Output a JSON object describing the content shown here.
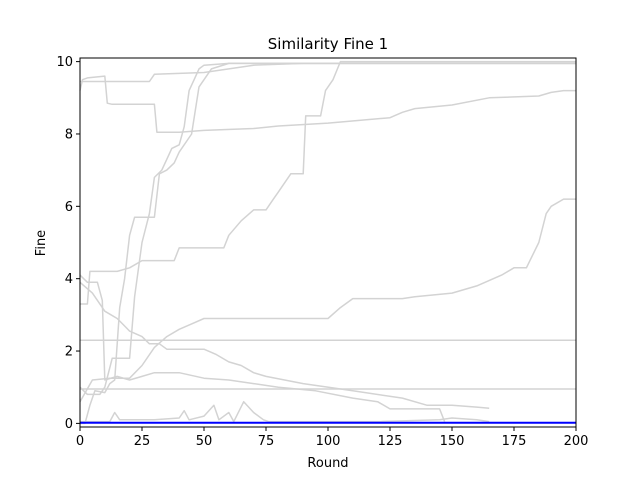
{
  "chart_data": {
    "type": "line",
    "title": "Similarity Fine 1",
    "xlabel": "Round",
    "ylabel": "Fine",
    "xlim": [
      0,
      200
    ],
    "ylim": [
      -0.1,
      10.1
    ],
    "x_ticks": [
      0,
      25,
      50,
      75,
      100,
      125,
      150,
      175,
      200
    ],
    "y_ticks": [
      0,
      2,
      4,
      6,
      8,
      10
    ],
    "grid": false,
    "legend": "none",
    "colors": {
      "background_series": "#d3d3d3",
      "highlight_series": "#0000ff"
    },
    "series": [
      {
        "color": "#d3d3d3",
        "points": [
          [
            0,
            9.2
          ],
          [
            1,
            9.5
          ],
          [
            3,
            9.55
          ],
          [
            10,
            9.6
          ],
          [
            11,
            8.85
          ],
          [
            13,
            8.82
          ],
          [
            30,
            8.82
          ],
          [
            31,
            8.05
          ],
          [
            40,
            8.05
          ],
          [
            50,
            8.1
          ],
          [
            70,
            8.15
          ],
          [
            80,
            8.22
          ],
          [
            100,
            8.3
          ],
          [
            125,
            8.45
          ],
          [
            130,
            8.6
          ],
          [
            135,
            8.7
          ],
          [
            150,
            8.8
          ],
          [
            165,
            9.0
          ],
          [
            185,
            9.05
          ],
          [
            190,
            9.15
          ],
          [
            195,
            9.2
          ],
          [
            200,
            9.2
          ]
        ]
      },
      {
        "color": "#d3d3d3",
        "points": [
          [
            0,
            9.45
          ],
          [
            28,
            9.45
          ],
          [
            30,
            9.65
          ],
          [
            50,
            9.7
          ],
          [
            60,
            9.8
          ],
          [
            70,
            9.9
          ],
          [
            90,
            9.95
          ],
          [
            200,
            9.95
          ]
        ]
      },
      {
        "color": "#d3d3d3",
        "points": [
          [
            0,
            3.3
          ],
          [
            3,
            3.3
          ],
          [
            4,
            4.2
          ],
          [
            15,
            4.2
          ],
          [
            20,
            4.3
          ],
          [
            25,
            4.5
          ],
          [
            38,
            4.5
          ],
          [
            40,
            4.85
          ],
          [
            58,
            4.85
          ],
          [
            60,
            5.2
          ],
          [
            65,
            5.6
          ],
          [
            70,
            5.9
          ],
          [
            75,
            5.9
          ],
          [
            78,
            6.2
          ],
          [
            80,
            6.4
          ],
          [
            85,
            6.9
          ],
          [
            90,
            6.9
          ],
          [
            91,
            8.5
          ],
          [
            97,
            8.5
          ],
          [
            99,
            9.2
          ],
          [
            102,
            9.5
          ],
          [
            105,
            10.0
          ],
          [
            200,
            10.0
          ]
        ]
      },
      {
        "color": "#d3d3d3",
        "points": [
          [
            0,
            0.6
          ],
          [
            5,
            1.2
          ],
          [
            12,
            1.25
          ],
          [
            20,
            1.25
          ],
          [
            25,
            1.6
          ],
          [
            30,
            2.1
          ],
          [
            35,
            2.4
          ],
          [
            40,
            2.6
          ],
          [
            45,
            2.75
          ],
          [
            50,
            2.9
          ],
          [
            75,
            2.9
          ],
          [
            100,
            2.9
          ],
          [
            105,
            3.2
          ],
          [
            110,
            3.45
          ],
          [
            130,
            3.45
          ],
          [
            135,
            3.5
          ],
          [
            150,
            3.6
          ],
          [
            160,
            3.8
          ],
          [
            170,
            4.1
          ],
          [
            175,
            4.3
          ],
          [
            180,
            4.3
          ],
          [
            185,
            5.0
          ],
          [
            188,
            5.8
          ],
          [
            190,
            6.0
          ],
          [
            195,
            6.2
          ],
          [
            200,
            6.2
          ]
        ]
      },
      {
        "color": "#d3d3d3",
        "points": [
          [
            0,
            3.9
          ],
          [
            5,
            3.6
          ],
          [
            10,
            3.1
          ],
          [
            15,
            2.9
          ],
          [
            20,
            2.55
          ],
          [
            25,
            2.4
          ],
          [
            28,
            2.2
          ],
          [
            32,
            2.2
          ],
          [
            35,
            2.05
          ],
          [
            50,
            2.05
          ],
          [
            55,
            1.9
          ],
          [
            60,
            1.7
          ],
          [
            65,
            1.6
          ],
          [
            70,
            1.4
          ],
          [
            75,
            1.3
          ],
          [
            90,
            1.1
          ],
          [
            110,
            0.9
          ],
          [
            130,
            0.7
          ],
          [
            140,
            0.5
          ],
          [
            150,
            0.5
          ],
          [
            160,
            0.45
          ],
          [
            165,
            0.42
          ]
        ]
      },
      {
        "color": "#d3d3d3",
        "points": [
          [
            0,
            4.1
          ],
          [
            3,
            3.9
          ],
          [
            7,
            3.9
          ],
          [
            9,
            3.4
          ],
          [
            10,
            1.2
          ],
          [
            15,
            1.3
          ],
          [
            20,
            1.2
          ],
          [
            25,
            1.3
          ],
          [
            30,
            1.4
          ],
          [
            40,
            1.4
          ],
          [
            50,
            1.25
          ],
          [
            60,
            1.2
          ],
          [
            70,
            1.1
          ],
          [
            80,
            1.0
          ],
          [
            95,
            0.9
          ],
          [
            110,
            0.7
          ],
          [
            120,
            0.6
          ],
          [
            125,
            0.4
          ],
          [
            145,
            0.4
          ],
          [
            147,
            0.05
          ]
        ]
      },
      {
        "color": "#d3d3d3",
        "points": [
          [
            0,
            2.3
          ],
          [
            200,
            2.3
          ]
        ]
      },
      {
        "color": "#d3d3d3",
        "points": [
          [
            0,
            0.95
          ],
          [
            200,
            0.95
          ]
        ]
      },
      {
        "color": "#d3d3d3",
        "points": [
          [
            0,
            1.0
          ],
          [
            3,
            0.8
          ],
          [
            8,
            0.8
          ],
          [
            10,
            1.0
          ],
          [
            13,
            1.8
          ],
          [
            20,
            1.8
          ],
          [
            22,
            3.5
          ],
          [
            25,
            5.0
          ],
          [
            28,
            5.8
          ],
          [
            30,
            6.8
          ],
          [
            33,
            7.0
          ],
          [
            35,
            7.3
          ],
          [
            37,
            7.6
          ],
          [
            40,
            7.7
          ],
          [
            42,
            8.2
          ],
          [
            44,
            9.2
          ],
          [
            46,
            9.5
          ],
          [
            48,
            9.8
          ],
          [
            50,
            9.9
          ],
          [
            60,
            9.95
          ],
          [
            200,
            9.95
          ]
        ]
      },
      {
        "color": "#d3d3d3",
        "points": [
          [
            0,
            0.0
          ],
          [
            2,
            0.0
          ],
          [
            4,
            0.5
          ],
          [
            6,
            0.9
          ],
          [
            10,
            0.85
          ],
          [
            12,
            1.1
          ],
          [
            14,
            1.2
          ],
          [
            16,
            3.2
          ],
          [
            18,
            4.0
          ],
          [
            20,
            5.2
          ],
          [
            22,
            5.7
          ],
          [
            30,
            5.7
          ],
          [
            32,
            6.9
          ],
          [
            35,
            7.0
          ],
          [
            38,
            7.2
          ],
          [
            40,
            7.5
          ],
          [
            45,
            8.0
          ],
          [
            48,
            9.3
          ],
          [
            50,
            9.5
          ],
          [
            53,
            9.8
          ],
          [
            60,
            9.95
          ],
          [
            200,
            9.95
          ]
        ]
      },
      {
        "color": "#d3d3d3",
        "points": [
          [
            0,
            0.05
          ],
          [
            12,
            0.05
          ],
          [
            14,
            0.3
          ],
          [
            16,
            0.1
          ],
          [
            30,
            0.1
          ],
          [
            40,
            0.15
          ],
          [
            42,
            0.35
          ],
          [
            44,
            0.1
          ],
          [
            50,
            0.2
          ],
          [
            54,
            0.5
          ],
          [
            56,
            0.1
          ],
          [
            60,
            0.3
          ],
          [
            62,
            0.05
          ],
          [
            66,
            0.6
          ],
          [
            70,
            0.3
          ],
          [
            74,
            0.1
          ],
          [
            76,
            0.05
          ],
          [
            120,
            0.05
          ],
          [
            145,
            0.1
          ],
          [
            150,
            0.15
          ],
          [
            160,
            0.1
          ],
          [
            165,
            0.05
          ]
        ]
      },
      {
        "color": "#0000ff",
        "highlight": true,
        "points": [
          [
            0,
            0.02
          ],
          [
            200,
            0.02
          ]
        ]
      }
    ]
  }
}
